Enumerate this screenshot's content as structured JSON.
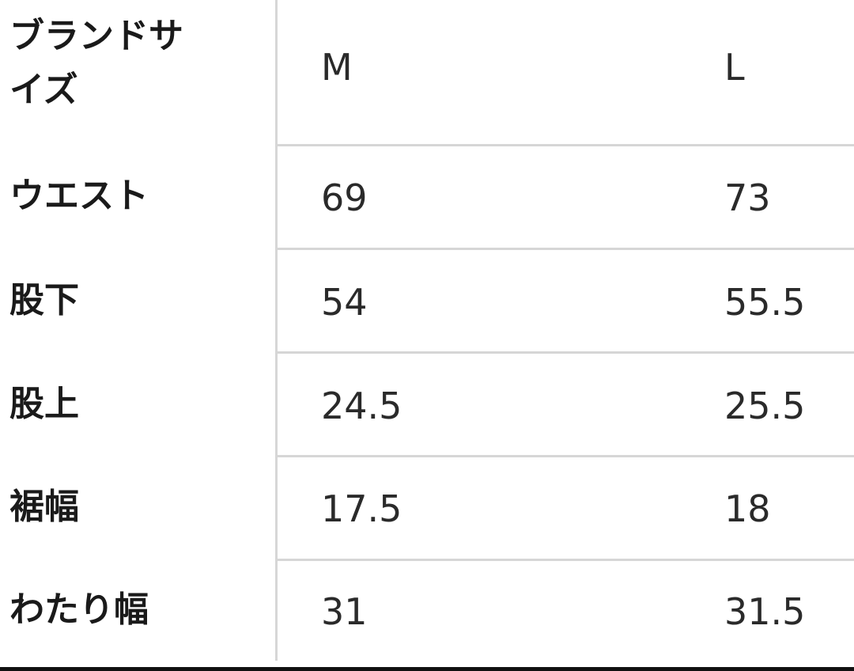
{
  "header": {
    "label": "ブランドサイズ",
    "label_line1": "ブランドサ",
    "label_line2": "イズ",
    "sizes": [
      "M",
      "L"
    ]
  },
  "rows": [
    {
      "label": "ウエスト",
      "values": [
        "69",
        "73"
      ]
    },
    {
      "label": "股下",
      "values": [
        "54",
        "55.5"
      ]
    },
    {
      "label": "股上",
      "values": [
        "24.5",
        "25.5"
      ]
    },
    {
      "label": "裾幅",
      "values": [
        "17.5",
        "18"
      ]
    },
    {
      "label": "わたり幅",
      "values": [
        "31",
        "31.5"
      ]
    }
  ]
}
